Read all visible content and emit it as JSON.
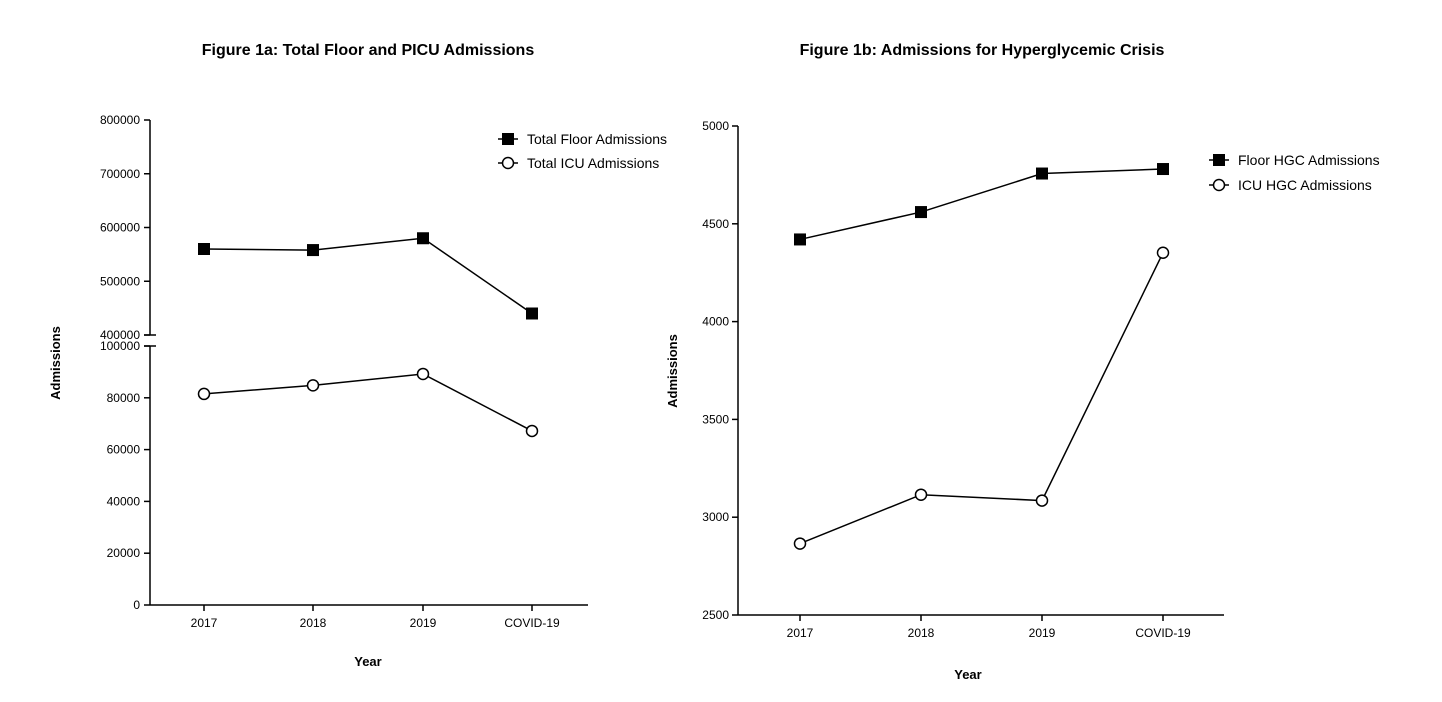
{
  "chart_data": [
    {
      "type": "line",
      "title": "Figure 1a: Total Floor and PICU Admissions",
      "xlabel": "Year",
      "ylabel": "Admissions",
      "categories": [
        "2017",
        "2018",
        "2019",
        "COVID-19"
      ],
      "axis_break": {
        "upper_range": [
          400000,
          800000
        ],
        "lower_range": [
          0,
          100000
        ]
      },
      "yticks_upper": [
        "400000",
        "500000",
        "600000",
        "700000",
        "800000"
      ],
      "yticks_lower": [
        "0",
        "20000",
        "40000",
        "60000",
        "80000",
        "100000"
      ],
      "series": [
        {
          "name": "Total Floor Admissions",
          "marker": "filled-square",
          "segment": "upper",
          "values": [
            560000,
            558000,
            580000,
            440000
          ]
        },
        {
          "name": "Total ICU Admissions",
          "marker": "open-circle",
          "segment": "lower",
          "values": [
            81500,
            84800,
            89200,
            67200
          ]
        }
      ],
      "legend": "top-right",
      "grid": false
    },
    {
      "type": "line",
      "title": "Figure 1b: Admissions for Hyperglycemic Crisis",
      "xlabel": "Year",
      "ylabel": "Admissions",
      "categories": [
        "2017",
        "2018",
        "2019",
        "COVID-19"
      ],
      "ylim": [
        2500,
        5000
      ],
      "yticks": [
        "2500",
        "3000",
        "3500",
        "4000",
        "4500",
        "5000"
      ],
      "series": [
        {
          "name": "Floor HGC Admissions",
          "marker": "filled-square",
          "values": [
            4420,
            4560,
            4757,
            4780
          ]
        },
        {
          "name": "ICU HGC Admissions",
          "marker": "open-circle",
          "values": [
            2865,
            3115,
            3085,
            4352
          ]
        }
      ],
      "legend": "top-right",
      "grid": false
    }
  ]
}
